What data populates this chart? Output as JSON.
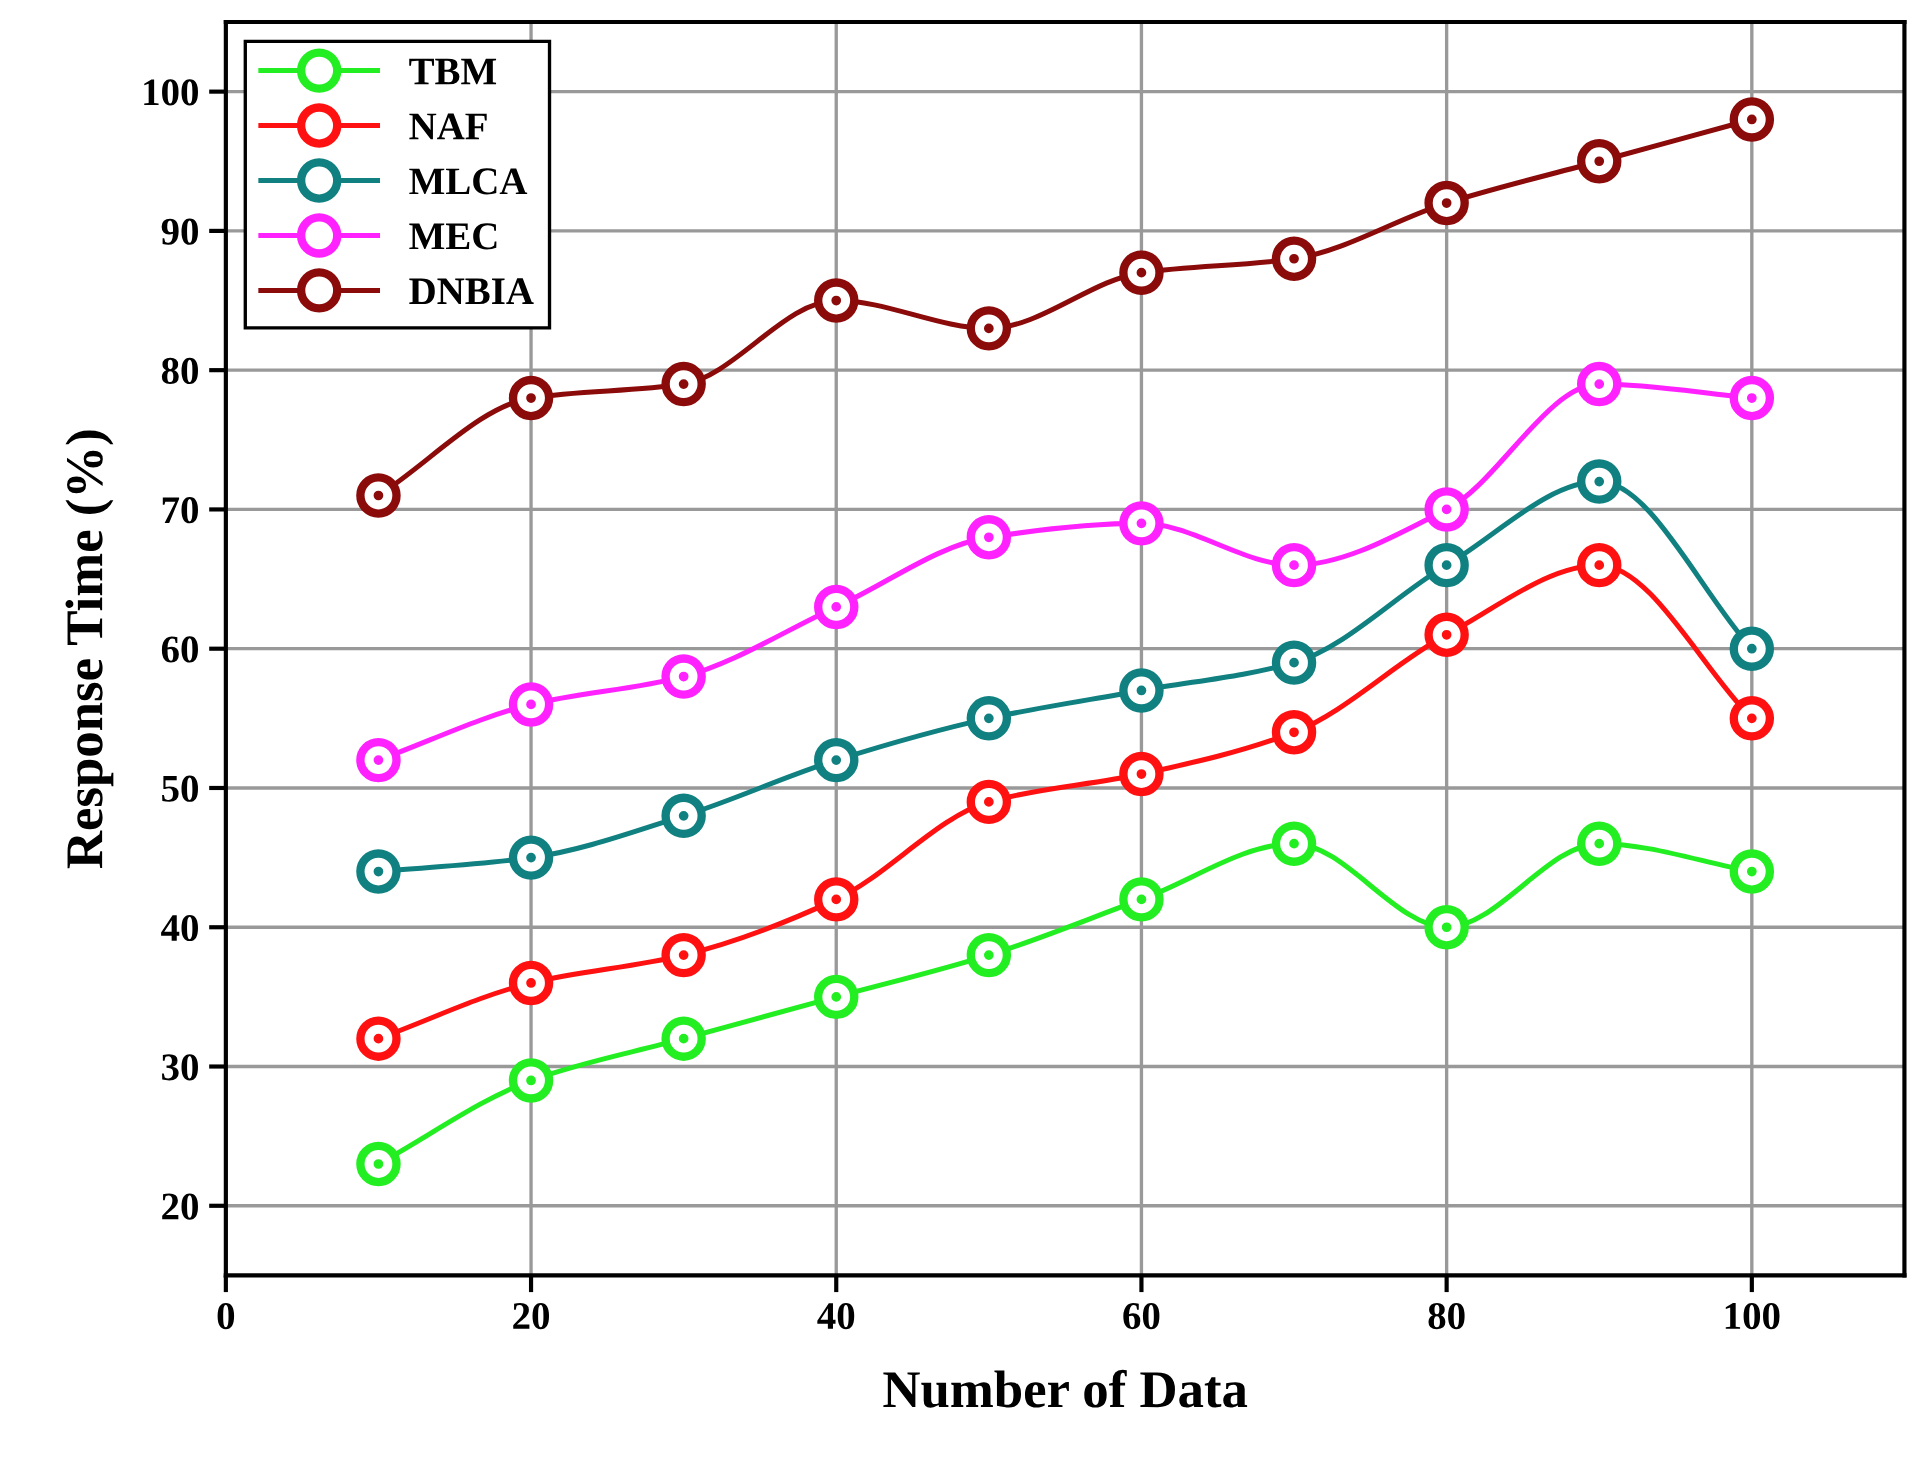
{
  "chart_data": {
    "type": "line",
    "xlabel": "Number of Data",
    "ylabel": "Response Time (%)",
    "x": [
      10,
      20,
      30,
      40,
      50,
      60,
      70,
      80,
      90,
      100
    ],
    "series": [
      {
        "name": "TBM",
        "color": "#22ee22",
        "values": [
          23,
          29,
          32,
          35,
          38,
          42,
          46,
          40,
          46,
          44
        ]
      },
      {
        "name": "NAF",
        "color": "#ff1111",
        "values": [
          32,
          36,
          38,
          42,
          49,
          51,
          54,
          61,
          66,
          55
        ]
      },
      {
        "name": "MLCA",
        "color": "#118080",
        "values": [
          44,
          45,
          48,
          52,
          55,
          57,
          59,
          66,
          72,
          60
        ]
      },
      {
        "name": "MEC",
        "color": "#ff22ff",
        "values": [
          52,
          56,
          58,
          63,
          68,
          69,
          66,
          70,
          79,
          78
        ]
      },
      {
        "name": "DNBIA",
        "color": "#8b0a0a",
        "values": [
          71,
          78,
          79,
          85,
          83,
          87,
          88,
          92,
          95,
          98
        ]
      }
    ],
    "xlim": [
      0,
      110
    ],
    "xticks": [
      0,
      20,
      40,
      60,
      80,
      100
    ],
    "ylim": [
      15,
      105
    ],
    "yticks": [
      20,
      30,
      40,
      50,
      60,
      70,
      80,
      90,
      100
    ],
    "grid": true,
    "legend": "top left",
    "marker": "circle",
    "line_style": "solid"
  }
}
